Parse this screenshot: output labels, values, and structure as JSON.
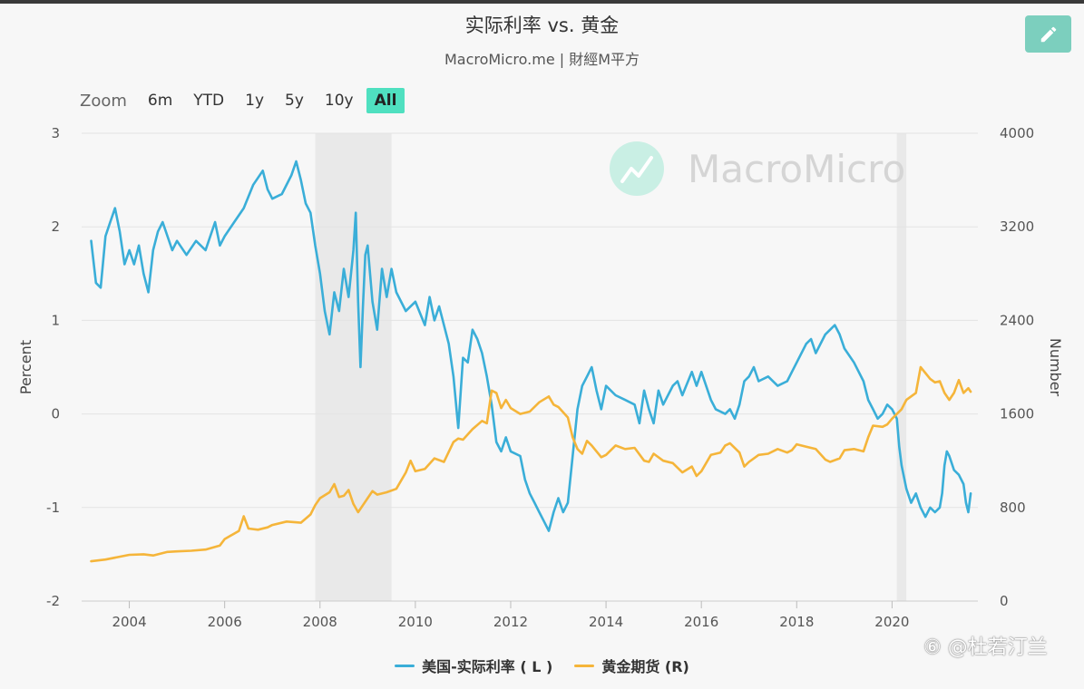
{
  "header": {
    "title": "实际利率 vs. 黄金",
    "subtitle": "MacroMicro.me | 財經M平方"
  },
  "toolbar": {
    "zoom_label": "Zoom",
    "zoom_buttons": [
      "6m",
      "YTD",
      "1y",
      "5y",
      "10y",
      "All"
    ],
    "active": "All"
  },
  "colors": {
    "real_rate": "#3aaed8",
    "gold": "#f5b53a",
    "recession_band": "#e9e9e9",
    "edit_button": "#7ccfbe",
    "zoom_active": "#4fe0c0"
  },
  "icons": {
    "edit": "pencil-icon",
    "watermark_logo": "macromicro-chart-logo-icon"
  },
  "brand_watermark": "MacroMicro",
  "credit_watermark": "⑥ @杜若汀兰",
  "chart_data": {
    "type": "line",
    "title": "实际利率 vs. 黄金",
    "subtitle": "MacroMicro.me | 財經M平方",
    "ylabel_left": "Percent",
    "ylabel_right": "Number",
    "ylim_left": [
      -2,
      3
    ],
    "ylim_right": [
      0,
      4000
    ],
    "yticks_left": [
      "-2",
      "-1",
      "0",
      "1",
      "2",
      "3"
    ],
    "yticks_right": [
      "0",
      "800",
      "1600",
      "2400",
      "3200",
      "4000"
    ],
    "xlim": [
      2003.0,
      2021.8
    ],
    "xticks": [
      "2004",
      "2006",
      "2008",
      "2010",
      "2012",
      "2014",
      "2016",
      "2018",
      "2020"
    ],
    "grid": true,
    "legend_position": "bottom",
    "recession_bands": [
      [
        2007.9,
        2009.5
      ],
      [
        2020.1,
        2020.3
      ]
    ],
    "series": [
      {
        "name": "美国-实际利率 ( L )",
        "axis": "left",
        "points": [
          [
            2003.2,
            1.85
          ],
          [
            2003.3,
            1.4
          ],
          [
            2003.4,
            1.35
          ],
          [
            2003.5,
            1.9
          ],
          [
            2003.6,
            2.05
          ],
          [
            2003.7,
            2.2
          ],
          [
            2003.8,
            1.95
          ],
          [
            2003.9,
            1.6
          ],
          [
            2004.0,
            1.75
          ],
          [
            2004.1,
            1.6
          ],
          [
            2004.2,
            1.8
          ],
          [
            2004.3,
            1.5
          ],
          [
            2004.4,
            1.3
          ],
          [
            2004.5,
            1.75
          ],
          [
            2004.6,
            1.95
          ],
          [
            2004.7,
            2.05
          ],
          [
            2004.8,
            1.9
          ],
          [
            2004.9,
            1.75
          ],
          [
            2005.0,
            1.85
          ],
          [
            2005.2,
            1.7
          ],
          [
            2005.4,
            1.85
          ],
          [
            2005.6,
            1.75
          ],
          [
            2005.8,
            2.05
          ],
          [
            2005.9,
            1.8
          ],
          [
            2006.0,
            1.9
          ],
          [
            2006.2,
            2.05
          ],
          [
            2006.4,
            2.2
          ],
          [
            2006.6,
            2.45
          ],
          [
            2006.8,
            2.6
          ],
          [
            2006.9,
            2.4
          ],
          [
            2007.0,
            2.3
          ],
          [
            2007.2,
            2.35
          ],
          [
            2007.4,
            2.55
          ],
          [
            2007.5,
            2.7
          ],
          [
            2007.6,
            2.5
          ],
          [
            2007.7,
            2.25
          ],
          [
            2007.8,
            2.15
          ],
          [
            2007.9,
            1.8
          ],
          [
            2008.0,
            1.5
          ],
          [
            2008.1,
            1.1
          ],
          [
            2008.2,
            0.85
          ],
          [
            2008.3,
            1.3
          ],
          [
            2008.4,
            1.1
          ],
          [
            2008.5,
            1.55
          ],
          [
            2008.6,
            1.25
          ],
          [
            2008.7,
            1.75
          ],
          [
            2008.75,
            2.15
          ],
          [
            2008.8,
            1.2
          ],
          [
            2008.85,
            0.5
          ],
          [
            2008.9,
            1.15
          ],
          [
            2008.95,
            1.7
          ],
          [
            2009.0,
            1.8
          ],
          [
            2009.1,
            1.2
          ],
          [
            2009.2,
            0.9
          ],
          [
            2009.3,
            1.55
          ],
          [
            2009.4,
            1.25
          ],
          [
            2009.5,
            1.55
          ],
          [
            2009.6,
            1.3
          ],
          [
            2009.8,
            1.1
          ],
          [
            2010.0,
            1.2
          ],
          [
            2010.2,
            0.95
          ],
          [
            2010.3,
            1.25
          ],
          [
            2010.4,
            1.0
          ],
          [
            2010.5,
            1.15
          ],
          [
            2010.6,
            0.95
          ],
          [
            2010.7,
            0.75
          ],
          [
            2010.8,
            0.4
          ],
          [
            2010.9,
            -0.15
          ],
          [
            2011.0,
            0.6
          ],
          [
            2011.1,
            0.55
          ],
          [
            2011.2,
            0.9
          ],
          [
            2011.3,
            0.8
          ],
          [
            2011.4,
            0.65
          ],
          [
            2011.5,
            0.4
          ],
          [
            2011.6,
            0.1
          ],
          [
            2011.7,
            -0.3
          ],
          [
            2011.8,
            -0.4
          ],
          [
            2011.9,
            -0.25
          ],
          [
            2012.0,
            -0.4
          ],
          [
            2012.2,
            -0.45
          ],
          [
            2012.3,
            -0.7
          ],
          [
            2012.4,
            -0.85
          ],
          [
            2012.5,
            -0.95
          ],
          [
            2012.6,
            -1.05
          ],
          [
            2012.7,
            -1.15
          ],
          [
            2012.8,
            -1.25
          ],
          [
            2012.9,
            -1.05
          ],
          [
            2013.0,
            -0.9
          ],
          [
            2013.1,
            -1.05
          ],
          [
            2013.2,
            -0.95
          ],
          [
            2013.3,
            -0.45
          ],
          [
            2013.4,
            0.05
          ],
          [
            2013.5,
            0.3
          ],
          [
            2013.6,
            0.4
          ],
          [
            2013.7,
            0.5
          ],
          [
            2013.8,
            0.25
          ],
          [
            2013.9,
            0.05
          ],
          [
            2014.0,
            0.3
          ],
          [
            2014.2,
            0.2
          ],
          [
            2014.4,
            0.15
          ],
          [
            2014.6,
            0.1
          ],
          [
            2014.7,
            -0.1
          ],
          [
            2014.8,
            0.25
          ],
          [
            2014.9,
            0.05
          ],
          [
            2015.0,
            -0.1
          ],
          [
            2015.1,
            0.25
          ],
          [
            2015.2,
            0.1
          ],
          [
            2015.4,
            0.3
          ],
          [
            2015.5,
            0.35
          ],
          [
            2015.6,
            0.2
          ],
          [
            2015.8,
            0.45
          ],
          [
            2015.9,
            0.3
          ],
          [
            2016.0,
            0.45
          ],
          [
            2016.2,
            0.15
          ],
          [
            2016.3,
            0.05
          ],
          [
            2016.5,
            0.0
          ],
          [
            2016.6,
            0.05
          ],
          [
            2016.7,
            -0.05
          ],
          [
            2016.8,
            0.1
          ],
          [
            2016.9,
            0.35
          ],
          [
            2017.0,
            0.4
          ],
          [
            2017.1,
            0.5
          ],
          [
            2017.2,
            0.35
          ],
          [
            2017.4,
            0.4
          ],
          [
            2017.6,
            0.3
          ],
          [
            2017.8,
            0.35
          ],
          [
            2017.9,
            0.45
          ],
          [
            2018.0,
            0.55
          ],
          [
            2018.2,
            0.75
          ],
          [
            2018.3,
            0.8
          ],
          [
            2018.4,
            0.65
          ],
          [
            2018.6,
            0.85
          ],
          [
            2018.8,
            0.95
          ],
          [
            2018.9,
            0.85
          ],
          [
            2019.0,
            0.7
          ],
          [
            2019.2,
            0.55
          ],
          [
            2019.4,
            0.35
          ],
          [
            2019.5,
            0.15
          ],
          [
            2019.6,
            0.05
          ],
          [
            2019.7,
            -0.05
          ],
          [
            2019.8,
            0.0
          ],
          [
            2019.9,
            0.1
          ],
          [
            2020.0,
            0.05
          ],
          [
            2020.1,
            -0.05
          ],
          [
            2020.15,
            -0.35
          ],
          [
            2020.2,
            -0.55
          ],
          [
            2020.3,
            -0.8
          ],
          [
            2020.4,
            -0.95
          ],
          [
            2020.5,
            -0.85
          ],
          [
            2020.6,
            -1.0
          ],
          [
            2020.7,
            -1.1
          ],
          [
            2020.8,
            -1.0
          ],
          [
            2020.9,
            -1.05
          ],
          [
            2021.0,
            -1.0
          ],
          [
            2021.05,
            -0.85
          ],
          [
            2021.1,
            -0.55
          ],
          [
            2021.15,
            -0.4
          ],
          [
            2021.2,
            -0.45
          ],
          [
            2021.3,
            -0.6
          ],
          [
            2021.4,
            -0.65
          ],
          [
            2021.5,
            -0.75
          ],
          [
            2021.55,
            -0.95
          ],
          [
            2021.6,
            -1.05
          ],
          [
            2021.65,
            -0.85
          ]
        ]
      },
      {
        "name": "黄金期货 (R)",
        "axis": "right",
        "points": [
          [
            2003.2,
            340
          ],
          [
            2003.5,
            355
          ],
          [
            2004.0,
            395
          ],
          [
            2004.3,
            400
          ],
          [
            2004.5,
            390
          ],
          [
            2004.8,
            420
          ],
          [
            2005.0,
            425
          ],
          [
            2005.3,
            430
          ],
          [
            2005.6,
            440
          ],
          [
            2005.9,
            475
          ],
          [
            2006.0,
            530
          ],
          [
            2006.3,
            600
          ],
          [
            2006.4,
            725
          ],
          [
            2006.5,
            620
          ],
          [
            2006.7,
            610
          ],
          [
            2006.9,
            630
          ],
          [
            2007.0,
            650
          ],
          [
            2007.3,
            680
          ],
          [
            2007.6,
            670
          ],
          [
            2007.8,
            740
          ],
          [
            2007.9,
            820
          ],
          [
            2008.0,
            880
          ],
          [
            2008.2,
            930
          ],
          [
            2008.3,
            1000
          ],
          [
            2008.4,
            890
          ],
          [
            2008.5,
            900
          ],
          [
            2008.6,
            950
          ],
          [
            2008.7,
            830
          ],
          [
            2008.8,
            760
          ],
          [
            2008.9,
            820
          ],
          [
            2009.0,
            880
          ],
          [
            2009.1,
            940
          ],
          [
            2009.2,
            910
          ],
          [
            2009.4,
            930
          ],
          [
            2009.6,
            960
          ],
          [
            2009.8,
            1100
          ],
          [
            2009.9,
            1200
          ],
          [
            2010.0,
            1110
          ],
          [
            2010.2,
            1130
          ],
          [
            2010.4,
            1220
          ],
          [
            2010.6,
            1190
          ],
          [
            2010.8,
            1360
          ],
          [
            2010.9,
            1390
          ],
          [
            2011.0,
            1380
          ],
          [
            2011.2,
            1470
          ],
          [
            2011.4,
            1540
          ],
          [
            2011.5,
            1520
          ],
          [
            2011.6,
            1800
          ],
          [
            2011.7,
            1780
          ],
          [
            2011.8,
            1650
          ],
          [
            2011.9,
            1720
          ],
          [
            2012.0,
            1650
          ],
          [
            2012.2,
            1600
          ],
          [
            2012.4,
            1620
          ],
          [
            2012.6,
            1700
          ],
          [
            2012.8,
            1750
          ],
          [
            2012.9,
            1680
          ],
          [
            2013.0,
            1660
          ],
          [
            2013.2,
            1570
          ],
          [
            2013.3,
            1400
          ],
          [
            2013.4,
            1300
          ],
          [
            2013.5,
            1260
          ],
          [
            2013.6,
            1370
          ],
          [
            2013.7,
            1330
          ],
          [
            2013.9,
            1230
          ],
          [
            2014.0,
            1250
          ],
          [
            2014.2,
            1330
          ],
          [
            2014.4,
            1300
          ],
          [
            2014.6,
            1310
          ],
          [
            2014.8,
            1200
          ],
          [
            2014.9,
            1190
          ],
          [
            2015.0,
            1260
          ],
          [
            2015.2,
            1200
          ],
          [
            2015.4,
            1180
          ],
          [
            2015.6,
            1100
          ],
          [
            2015.8,
            1150
          ],
          [
            2015.9,
            1070
          ],
          [
            2016.0,
            1110
          ],
          [
            2016.2,
            1250
          ],
          [
            2016.4,
            1270
          ],
          [
            2016.5,
            1330
          ],
          [
            2016.6,
            1350
          ],
          [
            2016.8,
            1270
          ],
          [
            2016.9,
            1150
          ],
          [
            2017.0,
            1190
          ],
          [
            2017.2,
            1250
          ],
          [
            2017.4,
            1260
          ],
          [
            2017.6,
            1300
          ],
          [
            2017.8,
            1270
          ],
          [
            2017.9,
            1290
          ],
          [
            2018.0,
            1340
          ],
          [
            2018.2,
            1320
          ],
          [
            2018.4,
            1300
          ],
          [
            2018.6,
            1210
          ],
          [
            2018.7,
            1190
          ],
          [
            2018.9,
            1220
          ],
          [
            2019.0,
            1290
          ],
          [
            2019.2,
            1300
          ],
          [
            2019.4,
            1280
          ],
          [
            2019.5,
            1400
          ],
          [
            2019.6,
            1500
          ],
          [
            2019.8,
            1490
          ],
          [
            2019.9,
            1510
          ],
          [
            2020.0,
            1560
          ],
          [
            2020.2,
            1640
          ],
          [
            2020.3,
            1720
          ],
          [
            2020.5,
            1780
          ],
          [
            2020.6,
            2000
          ],
          [
            2020.7,
            1950
          ],
          [
            2020.8,
            1900
          ],
          [
            2020.9,
            1870
          ],
          [
            2021.0,
            1880
          ],
          [
            2021.1,
            1780
          ],
          [
            2021.2,
            1720
          ],
          [
            2021.3,
            1780
          ],
          [
            2021.4,
            1890
          ],
          [
            2021.5,
            1780
          ],
          [
            2021.6,
            1820
          ],
          [
            2021.65,
            1790
          ]
        ]
      }
    ]
  }
}
